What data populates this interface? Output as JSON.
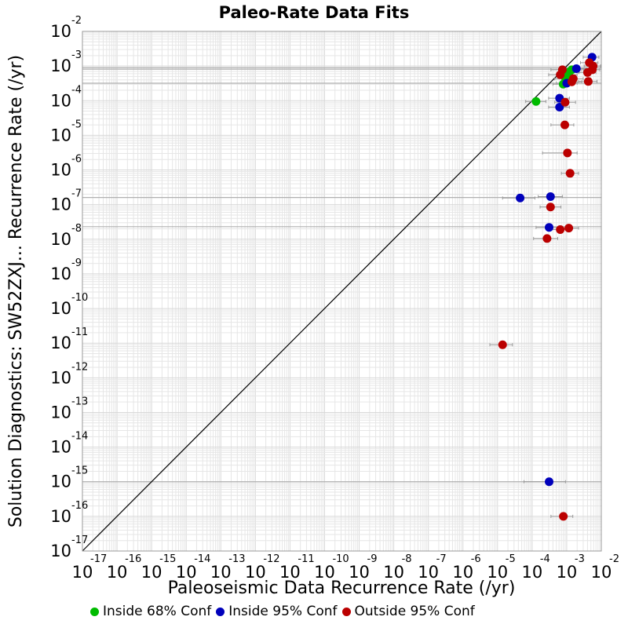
{
  "chart_data": {
    "type": "scatter",
    "title": "Paleo-Rate Data Fits",
    "xlabel": "Paleoseismic Data Recurrence Rate (/yr)",
    "ylabel": "Solution Diagnostics: SW52ZXJ... Recurrence Rate (/yr)",
    "x_scale": "log",
    "y_scale": "log",
    "xlim": [
      1e-17,
      0.01
    ],
    "ylim": [
      1e-17,
      0.01
    ],
    "x_tick_exponents": [
      -17,
      -16,
      -15,
      -14,
      -13,
      -12,
      -11,
      -10,
      -9,
      -8,
      -7,
      -6,
      -5,
      -4,
      -3,
      -2
    ],
    "y_tick_exponents": [
      -2,
      -3,
      -4,
      -5,
      -6,
      -7,
      -8,
      -9,
      -10,
      -11,
      -12,
      -13,
      -14,
      -15,
      -16,
      -17
    ],
    "tick_base": "10",
    "grid": true,
    "reference_line": "y = x",
    "legend_position": "bottom",
    "colors": {
      "inside_68": "#00bb00",
      "inside_95": "#0000bb",
      "outside_95": "#bb0000",
      "errorbar": "#999999",
      "grid": "#e6e6e6",
      "reference_line": "#000000"
    },
    "legend": [
      {
        "label": "Inside 68% Conf",
        "color": "#00bb00"
      },
      {
        "label": "Inside 95% Conf",
        "color": "#0000bb"
      },
      {
        "label": "Outside 95% Conf",
        "color": "#bb0000"
      }
    ],
    "hlines": [
      {
        "y": 0.00089,
        "x_from": 1e-17,
        "x_to": 0.01
      },
      {
        "y": 0.00081,
        "x_from": 1e-17,
        "x_to": 0.01
      },
      {
        "y": 0.00032,
        "x_from": 1e-17,
        "x_to": 0.01
      },
      {
        "y": 1.6e-07,
        "x_from": 1e-17,
        "x_to": 0.01
      },
      {
        "y": 2.3e-08,
        "x_from": 1e-17,
        "x_to": 0.01
      },
      {
        "y": 1e-15,
        "x_from": 1e-17,
        "x_to": 0.01
      }
    ],
    "series": [
      {
        "name": "Inside 68% Conf",
        "color": "#00bb00",
        "points": [
          {
            "x": 0.00013,
            "y": 9.5e-05,
            "xmin": 6.5e-05,
            "xmax": 0.00025
          },
          {
            "x": 0.00079,
            "y": 0.0003,
            "xmin": 0.0004,
            "xmax": 0.0015
          },
          {
            "x": 0.00093,
            "y": 0.00043,
            "xmin": 0.00045,
            "xmax": 0.0018
          },
          {
            "x": 0.00105,
            "y": 0.00056,
            "xmin": 0.0005,
            "xmax": 0.002
          },
          {
            "x": 0.0012,
            "y": 0.00068,
            "xmin": 0.0006,
            "xmax": 0.0023
          },
          {
            "x": 0.0014,
            "y": 0.00078,
            "xmin": 0.0007,
            "xmax": 0.0026
          }
        ]
      },
      {
        "name": "Inside 95% Conf",
        "color": "#0000bb",
        "points": [
          {
            "x": 0.0054,
            "y": 0.0018,
            "xmin": 0.003,
            "xmax": 0.0085
          },
          {
            "x": 0.0019,
            "y": 0.00084,
            "xmin": 0.001,
            "xmax": 0.0036
          },
          {
            "x": 0.001,
            "y": 0.00032,
            "xmin": 0.0005,
            "xmax": 0.002
          },
          {
            "x": 0.00062,
            "y": 0.000118,
            "xmin": 0.0003,
            "xmax": 0.0012
          },
          {
            "x": 0.00062,
            "y": 6.5e-05,
            "xmin": 0.0003,
            "xmax": 0.0012
          },
          {
            "x": 4.5e-05,
            "y": 1.55e-07,
            "xmin": 1.4e-05,
            "xmax": 0.00012
          },
          {
            "x": 0.00034,
            "y": 1.7e-07,
            "xmin": 0.00015,
            "xmax": 0.00075
          },
          {
            "x": 0.00031,
            "y": 2.2e-08,
            "xmin": 0.00013,
            "xmax": 0.00067
          },
          {
            "x": 0.00031,
            "y": 1e-15,
            "xmin": 5.8e-05,
            "xmax": 0.00092
          }
        ]
      },
      {
        "name": "Outside 95% Conf",
        "color": "#bb0000",
        "points": [
          {
            "x": 0.0045,
            "y": 0.00125,
            "xmin": 0.0025,
            "xmax": 0.008
          },
          {
            "x": 0.0058,
            "y": 0.001,
            "xmin": 0.0032,
            "xmax": 0.0095
          },
          {
            "x": 0.0055,
            "y": 0.00078,
            "xmin": 0.003,
            "xmax": 0.009
          },
          {
            "x": 0.004,
            "y": 0.00065,
            "xmin": 0.0022,
            "xmax": 0.007
          },
          {
            "x": 0.00075,
            "y": 0.00078,
            "xmin": 0.00035,
            "xmax": 0.0015
          },
          {
            "x": 0.00065,
            "y": 0.00056,
            "xmin": 0.0003,
            "xmax": 0.0013
          },
          {
            "x": 0.00155,
            "y": 0.00043,
            "xmin": 0.0008,
            "xmax": 0.003
          },
          {
            "x": 0.0014,
            "y": 0.00035,
            "xmin": 0.0007,
            "xmax": 0.0027
          },
          {
            "x": 0.0042,
            "y": 0.00036,
            "xmin": 0.0022,
            "xmax": 0.0075
          },
          {
            "x": 0.0009,
            "y": 9e-05,
            "xmin": 0.00045,
            "xmax": 0.0018
          },
          {
            "x": 0.00088,
            "y": 2e-05,
            "xmin": 0.00035,
            "xmax": 0.0016
          },
          {
            "x": 0.00105,
            "y": 3.1e-06,
            "xmin": 0.0002,
            "xmax": 0.002
          },
          {
            "x": 0.00125,
            "y": 8e-07,
            "xmin": 0.0007,
            "xmax": 0.0022
          },
          {
            "x": 0.00034,
            "y": 8.5e-08,
            "xmin": 0.00017,
            "xmax": 0.00068
          },
          {
            "x": 0.00115,
            "y": 2.1e-08,
            "xmin": 0.0006,
            "xmax": 0.0022
          },
          {
            "x": 0.00065,
            "y": 1.9e-08,
            "xmin": 0.00032,
            "xmax": 0.0013
          },
          {
            "x": 0.00027,
            "y": 1.05e-08,
            "xmin": 0.00011,
            "xmax": 0.00055
          },
          {
            "x": 1.4e-05,
            "y": 9e-12,
            "xmin": 6e-06,
            "xmax": 2.7e-05
          },
          {
            "x": 0.0008,
            "y": 1e-16,
            "xmin": 0.00035,
            "xmax": 0.0015
          }
        ]
      }
    ]
  }
}
